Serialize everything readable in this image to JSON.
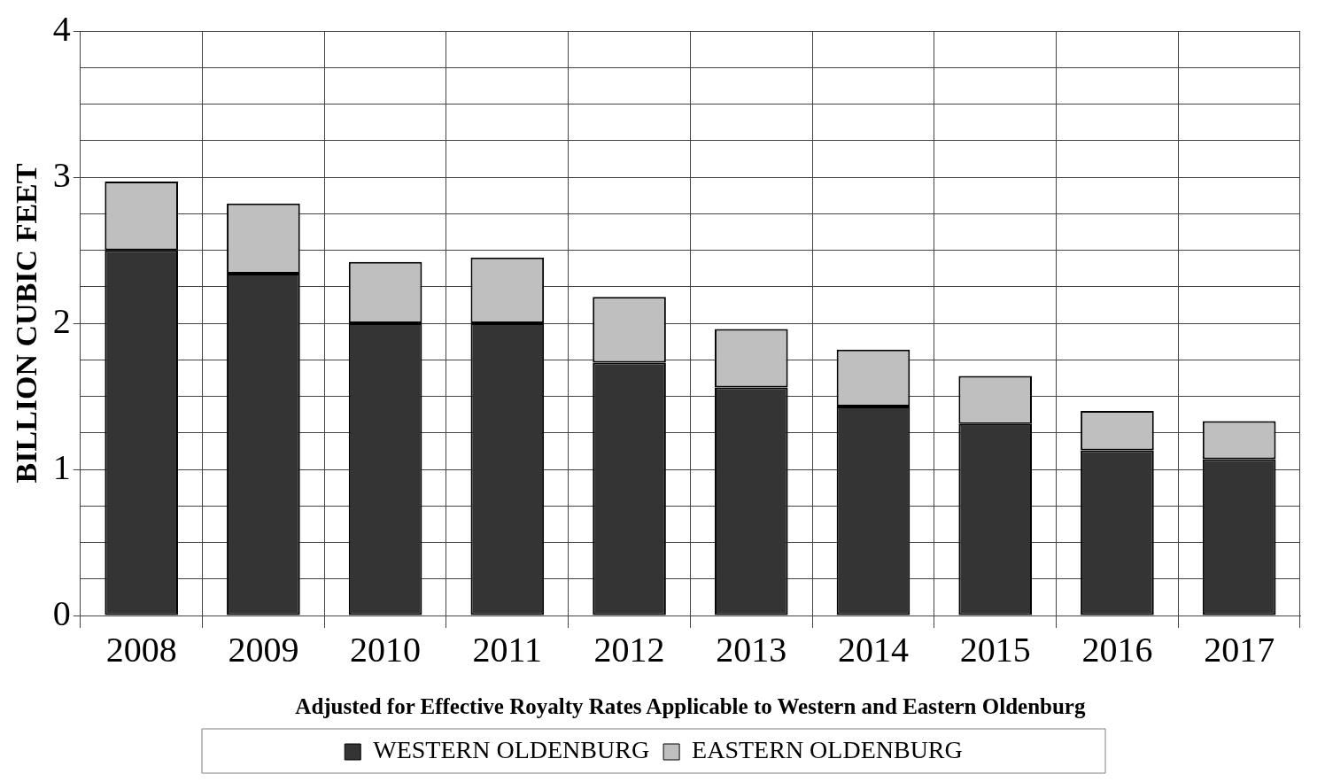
{
  "chart_data": {
    "type": "bar",
    "stacked": true,
    "categories": [
      "2008",
      "2009",
      "2010",
      "2011",
      "2012",
      "2013",
      "2014",
      "2015",
      "2016",
      "2017"
    ],
    "series": [
      {
        "name": "WESTERN OLDENBURG",
        "color": "#333433",
        "values": [
          2.5,
          2.34,
          2.0,
          2.0,
          1.73,
          1.56,
          1.43,
          1.31,
          1.13,
          1.07
        ]
      },
      {
        "name": "EASTERN OLDENBURG",
        "color": "#bfbfbf",
        "values": [
          0.47,
          0.48,
          0.42,
          0.45,
          0.45,
          0.4,
          0.39,
          0.33,
          0.27,
          0.26
        ]
      }
    ],
    "ylabel": "BILLION CUBIC FEET",
    "xlabel": "Adjusted for Effective Royalty Rates Applicable to Western and Eastern Oldenburg",
    "ylim": [
      0,
      4
    ],
    "yticks": [
      0,
      {
        "value": 0.25,
        "label": null
      },
      {
        "value": 0.5,
        "label": null
      },
      {
        "value": 0.75,
        "label": null
      },
      1,
      {
        "value": 1.25,
        "label": null
      },
      {
        "value": 1.5,
        "label": null
      },
      {
        "value": 1.75,
        "label": null
      },
      2,
      {
        "value": 2.25,
        "label": null
      },
      {
        "value": 2.5,
        "label": null
      },
      {
        "value": 2.75,
        "label": null
      },
      3,
      {
        "value": 3.25,
        "label": null
      },
      {
        "value": 3.5,
        "label": null
      },
      {
        "value": 3.75,
        "label": null
      },
      4
    ],
    "grid": true,
    "legend": "bottom"
  }
}
